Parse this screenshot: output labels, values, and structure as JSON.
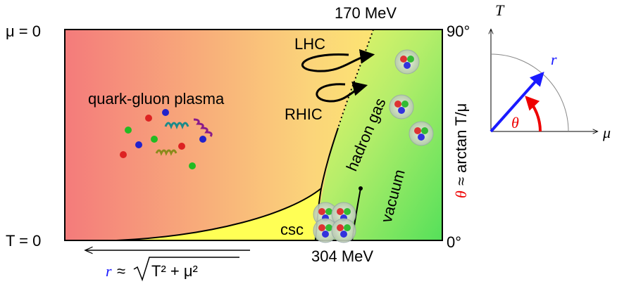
{
  "axes": {
    "mu_zero": "μ = 0",
    "t_zero": "T = 0",
    "top_energy": "170 MeV",
    "bottom_energy": "304 MeV",
    "angle_top": "90°",
    "angle_bottom": "0°"
  },
  "regions": {
    "qgp": "quark-gluon plasma",
    "hadron": "hadron gas",
    "vacuum": "vacuum",
    "csc": "csc"
  },
  "experiments": {
    "lhc": "LHC",
    "rhic": "RHIC"
  },
  "theta_label": {
    "symbol": "θ",
    "text": "≈ arctan T/μ"
  },
  "r_label": {
    "symbol": "r",
    "relation": "≈",
    "radicand": "T² + μ²"
  },
  "inset": {
    "t_axis": "T",
    "mu_axis": "μ",
    "r": "r",
    "theta": "θ"
  }
}
